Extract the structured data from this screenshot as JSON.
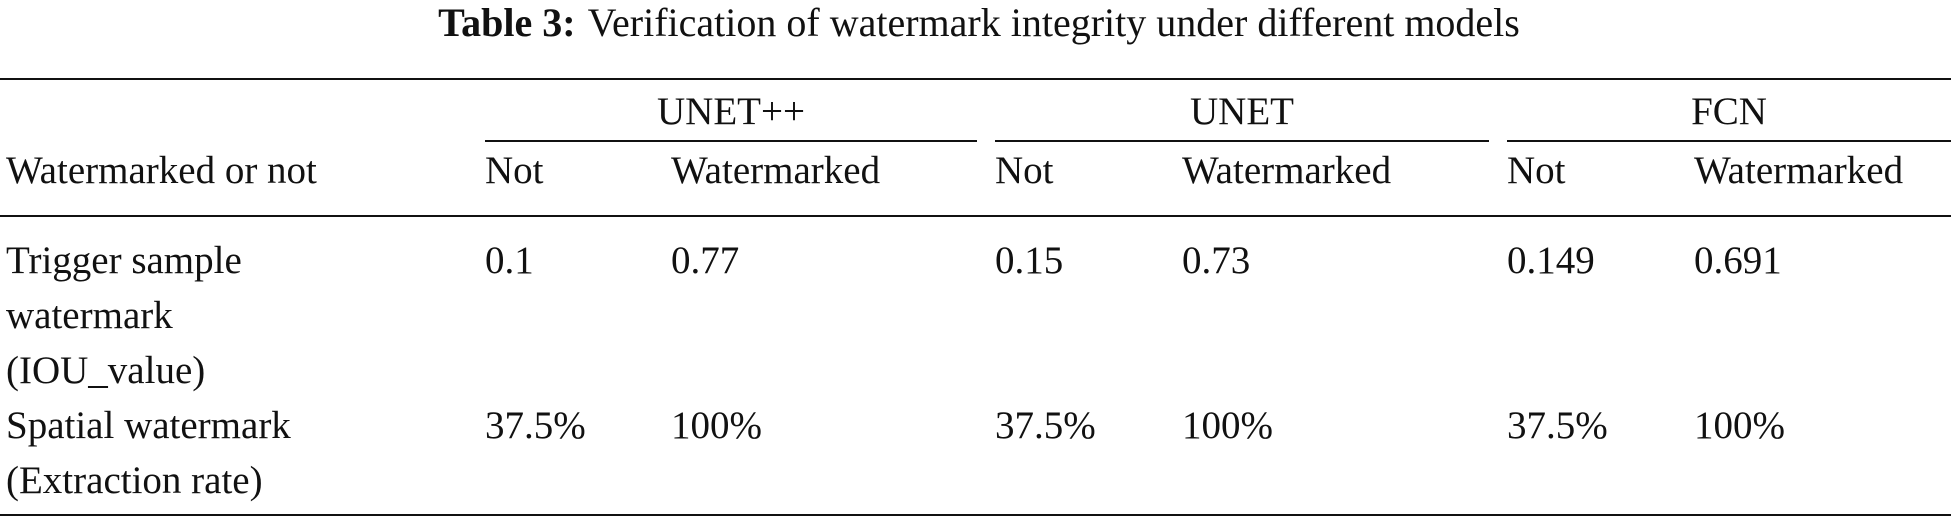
{
  "caption": {
    "label": "Table 3:",
    "text": "Verification of watermark integrity under different models"
  },
  "table": {
    "row_header": "Watermarked or not",
    "groups": [
      "UNET++",
      "UNET",
      "FCN"
    ],
    "subheaders": [
      [
        "Not",
        "Watermarked"
      ],
      [
        "Not",
        "Watermarked"
      ],
      [
        "Not",
        "Watermarked"
      ]
    ],
    "rows": [
      {
        "label": [
          "Trigger sample",
          "watermark",
          "(IOU_value)"
        ],
        "cells": [
          "0.1",
          "0.77",
          "0.15",
          "0.73",
          "0.149",
          "0.691"
        ]
      },
      {
        "label": [
          "Spatial watermark",
          "(Extraction rate)"
        ],
        "cells": [
          "37.5%",
          "100%",
          "37.5%",
          "100%",
          "37.5%",
          "100%"
        ]
      }
    ]
  }
}
